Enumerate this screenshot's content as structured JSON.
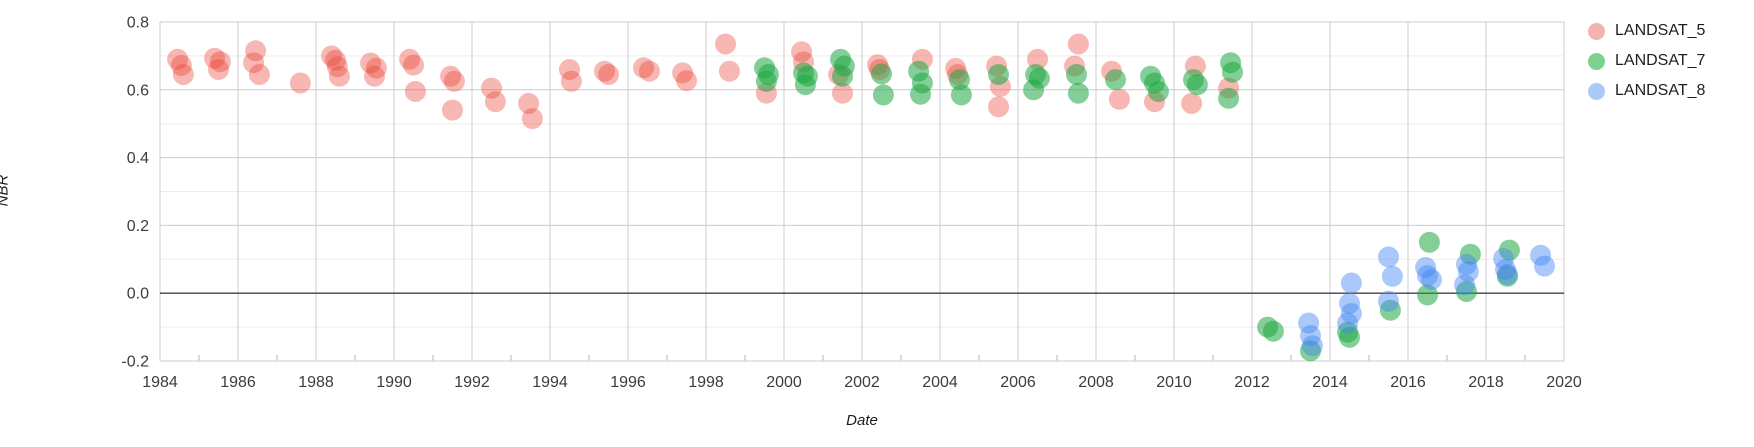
{
  "axes": {
    "grid_color": "#cccccc",
    "minor_grid_color": "#ededed",
    "zero_line_color": "#454545",
    "tick_label_color": "#3c3c3c",
    "axis_title_color": "#1a1a1a",
    "background_color": "#ffffff"
  },
  "legend": {
    "items": [
      {
        "label": "LANDSAT_5",
        "swatch_color": "#f4b3ae"
      },
      {
        "label": "LANDSAT_7",
        "swatch_color": "#7ed28d"
      },
      {
        "label": "LANDSAT_8",
        "swatch_color": "#a9c9f6"
      }
    ]
  },
  "chart_data": {
    "type": "scatter",
    "title": "",
    "xlabel": "Date",
    "ylabel": "NBR",
    "xlim": [
      1984,
      2020
    ],
    "ylim": [
      -0.2,
      0.8
    ],
    "grid": true,
    "legend_position": "right",
    "x_tick_years": [
      1984,
      1986,
      1988,
      1990,
      1992,
      1994,
      1996,
      1998,
      2000,
      2002,
      2004,
      2006,
      2008,
      2010,
      2012,
      2014,
      2016,
      2018,
      2020
    ],
    "x_minor_tick_years": [
      1985,
      1987,
      1989,
      1991,
      1993,
      1995,
      1997,
      1999,
      2001,
      2003,
      2005,
      2007,
      2009,
      2011,
      2013,
      2015,
      2017,
      2019
    ],
    "y_ticks": [
      {
        "value": 0.8,
        "label": "0.8"
      },
      {
        "value": 0.6,
        "label": "0.6"
      },
      {
        "value": 0.4,
        "label": "0.4"
      },
      {
        "value": 0.2,
        "label": "0.2"
      },
      {
        "value": 0.0,
        "label": "0.0"
      },
      {
        "value": -0.2,
        "label": "-0.2"
      }
    ],
    "y_minor_values": [
      0.7,
      0.5,
      0.3,
      0.1,
      -0.1
    ],
    "point_radius": 10.5,
    "series": [
      {
        "name": "LANDSAT_5",
        "color": "#ea4335",
        "opacity": 0.38,
        "points": [
          [
            1984.45,
            0.69
          ],
          [
            1984.55,
            0.672
          ],
          [
            1984.6,
            0.645
          ],
          [
            1985.4,
            0.693
          ],
          [
            1985.55,
            0.683
          ],
          [
            1985.5,
            0.66
          ],
          [
            1986.45,
            0.715
          ],
          [
            1986.4,
            0.68
          ],
          [
            1986.55,
            0.645
          ],
          [
            1987.6,
            0.62
          ],
          [
            1988.4,
            0.7
          ],
          [
            1988.5,
            0.687
          ],
          [
            1988.55,
            0.668
          ],
          [
            1988.6,
            0.64
          ],
          [
            1989.4,
            0.679
          ],
          [
            1989.55,
            0.664
          ],
          [
            1989.5,
            0.64
          ],
          [
            1990.4,
            0.69
          ],
          [
            1990.5,
            0.673
          ],
          [
            1990.55,
            0.595
          ],
          [
            1991.45,
            0.64
          ],
          [
            1991.55,
            0.625
          ],
          [
            1991.5,
            0.54
          ],
          [
            1992.5,
            0.605
          ],
          [
            1992.6,
            0.565
          ],
          [
            1993.45,
            0.56
          ],
          [
            1993.55,
            0.515
          ],
          [
            1994.5,
            0.66
          ],
          [
            1994.55,
            0.625
          ],
          [
            1995.4,
            0.655
          ],
          [
            1995.5,
            0.645
          ],
          [
            1996.4,
            0.665
          ],
          [
            1996.55,
            0.655
          ],
          [
            1997.4,
            0.65
          ],
          [
            1997.5,
            0.627
          ],
          [
            1998.5,
            0.735
          ],
          [
            1998.6,
            0.655
          ],
          [
            1999.55,
            0.59
          ],
          [
            2000.45,
            0.712
          ],
          [
            2000.5,
            0.682
          ],
          [
            2001.4,
            0.645
          ],
          [
            2001.5,
            0.59
          ],
          [
            2002.4,
            0.674
          ],
          [
            2002.45,
            0.66
          ],
          [
            2003.55,
            0.69
          ],
          [
            2004.4,
            0.663
          ],
          [
            2004.45,
            0.645
          ],
          [
            2005.45,
            0.67
          ],
          [
            2005.55,
            0.61
          ],
          [
            2005.5,
            0.55
          ],
          [
            2006.5,
            0.69
          ],
          [
            2007.55,
            0.735
          ],
          [
            2007.45,
            0.67
          ],
          [
            2008.4,
            0.655
          ],
          [
            2008.6,
            0.572
          ],
          [
            2009.5,
            0.565
          ],
          [
            2010.55,
            0.67
          ],
          [
            2010.45,
            0.56
          ],
          [
            2011.4,
            0.605
          ]
        ]
      },
      {
        "name": "LANDSAT_7",
        "color": "#1fa743",
        "opacity": 0.55,
        "points": [
          [
            1999.5,
            0.665
          ],
          [
            1999.6,
            0.645
          ],
          [
            1999.55,
            0.625
          ],
          [
            2000.5,
            0.65
          ],
          [
            2000.6,
            0.64
          ],
          [
            2000.55,
            0.615
          ],
          [
            2001.45,
            0.69
          ],
          [
            2001.55,
            0.67
          ],
          [
            2001.5,
            0.64
          ],
          [
            2002.5,
            0.647
          ],
          [
            2002.55,
            0.585
          ],
          [
            2003.45,
            0.655
          ],
          [
            2003.55,
            0.62
          ],
          [
            2003.5,
            0.587
          ],
          [
            2004.5,
            0.63
          ],
          [
            2004.55,
            0.585
          ],
          [
            2005.5,
            0.645
          ],
          [
            2006.45,
            0.645
          ],
          [
            2006.55,
            0.634
          ],
          [
            2006.4,
            0.6
          ],
          [
            2007.5,
            0.645
          ],
          [
            2007.55,
            0.59
          ],
          [
            2008.5,
            0.63
          ],
          [
            2009.4,
            0.64
          ],
          [
            2009.5,
            0.62
          ],
          [
            2009.6,
            0.595
          ],
          [
            2010.5,
            0.63
          ],
          [
            2010.6,
            0.615
          ],
          [
            2011.45,
            0.68
          ],
          [
            2011.5,
            0.652
          ],
          [
            2011.4,
            0.575
          ],
          [
            2012.4,
            -0.1
          ],
          [
            2012.55,
            -0.112
          ],
          [
            2013.5,
            -0.17
          ],
          [
            2014.45,
            -0.115
          ],
          [
            2014.5,
            -0.13
          ],
          [
            2015.55,
            -0.05
          ],
          [
            2016.55,
            0.15
          ],
          [
            2016.5,
            -0.005
          ],
          [
            2017.6,
            0.115
          ],
          [
            2017.5,
            0.005
          ],
          [
            2018.6,
            0.127
          ],
          [
            2018.55,
            0.05
          ]
        ]
      },
      {
        "name": "LANDSAT_8",
        "color": "#4285f4",
        "opacity": 0.45,
        "points": [
          [
            2013.45,
            -0.088
          ],
          [
            2013.5,
            -0.125
          ],
          [
            2013.55,
            -0.155
          ],
          [
            2014.55,
            0.03
          ],
          [
            2014.5,
            -0.03
          ],
          [
            2014.55,
            -0.06
          ],
          [
            2014.45,
            -0.088
          ],
          [
            2015.5,
            0.107
          ],
          [
            2015.6,
            0.05
          ],
          [
            2015.5,
            -0.024
          ],
          [
            2016.45,
            0.076
          ],
          [
            2016.5,
            0.052
          ],
          [
            2016.6,
            0.04
          ],
          [
            2017.5,
            0.085
          ],
          [
            2017.55,
            0.064
          ],
          [
            2017.45,
            0.025
          ],
          [
            2018.45,
            0.102
          ],
          [
            2018.5,
            0.07
          ],
          [
            2018.55,
            0.055
          ],
          [
            2019.4,
            0.112
          ],
          [
            2019.5,
            0.08
          ]
        ]
      }
    ]
  }
}
